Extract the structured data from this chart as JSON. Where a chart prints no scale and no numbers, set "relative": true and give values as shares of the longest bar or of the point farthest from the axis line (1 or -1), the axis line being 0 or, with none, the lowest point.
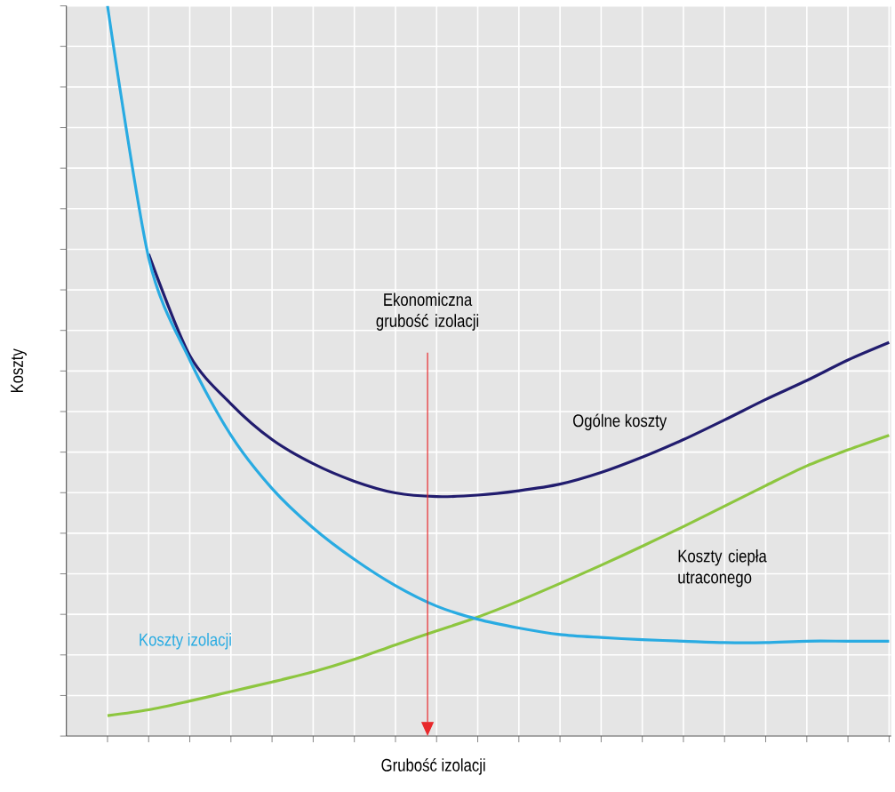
{
  "chart_data": {
    "type": "line",
    "relative": true,
    "xlabel": "Grubość izolacji",
    "ylabel": "Koszty",
    "grid": true,
    "tick_labels": false,
    "categories": [
      null,
      null,
      null,
      null,
      null,
      null,
      null,
      null,
      null,
      null,
      null,
      null,
      null,
      null,
      null,
      null,
      null,
      null,
      null,
      null
    ],
    "series": [
      {
        "name": "Ogólne koszty",
        "color": "#211c6e",
        "values": [
          null,
          0.66,
          0.521,
          0.455,
          0.406,
          0.373,
          0.349,
          0.333,
          0.328,
          0.33,
          0.336,
          0.345,
          0.361,
          0.382,
          0.406,
          0.433,
          0.461,
          0.487,
          0.515,
          0.539
        ]
      },
      {
        "name": "Koszty ciepła utraconego",
        "color": "#8dc63f",
        "values": [
          0.028,
          0.036,
          0.048,
          0.061,
          0.074,
          0.088,
          0.105,
          0.125,
          0.144,
          0.163,
          0.185,
          0.209,
          0.234,
          0.26,
          0.287,
          0.315,
          0.343,
          0.37,
          0.392,
          0.412
        ]
      },
      {
        "name": "Koszty izolacji",
        "color": "#29abe2",
        "values": [
          1.0,
          0.655,
          0.515,
          0.412,
          0.339,
          0.285,
          0.242,
          0.206,
          0.178,
          0.16,
          0.148,
          0.139,
          0.135,
          0.132,
          0.13,
          0.128,
          0.128,
          0.13,
          0.13,
          0.13
        ]
      }
    ],
    "annotations": [
      "Ekonomiczna grubość izolacji"
    ]
  }
}
